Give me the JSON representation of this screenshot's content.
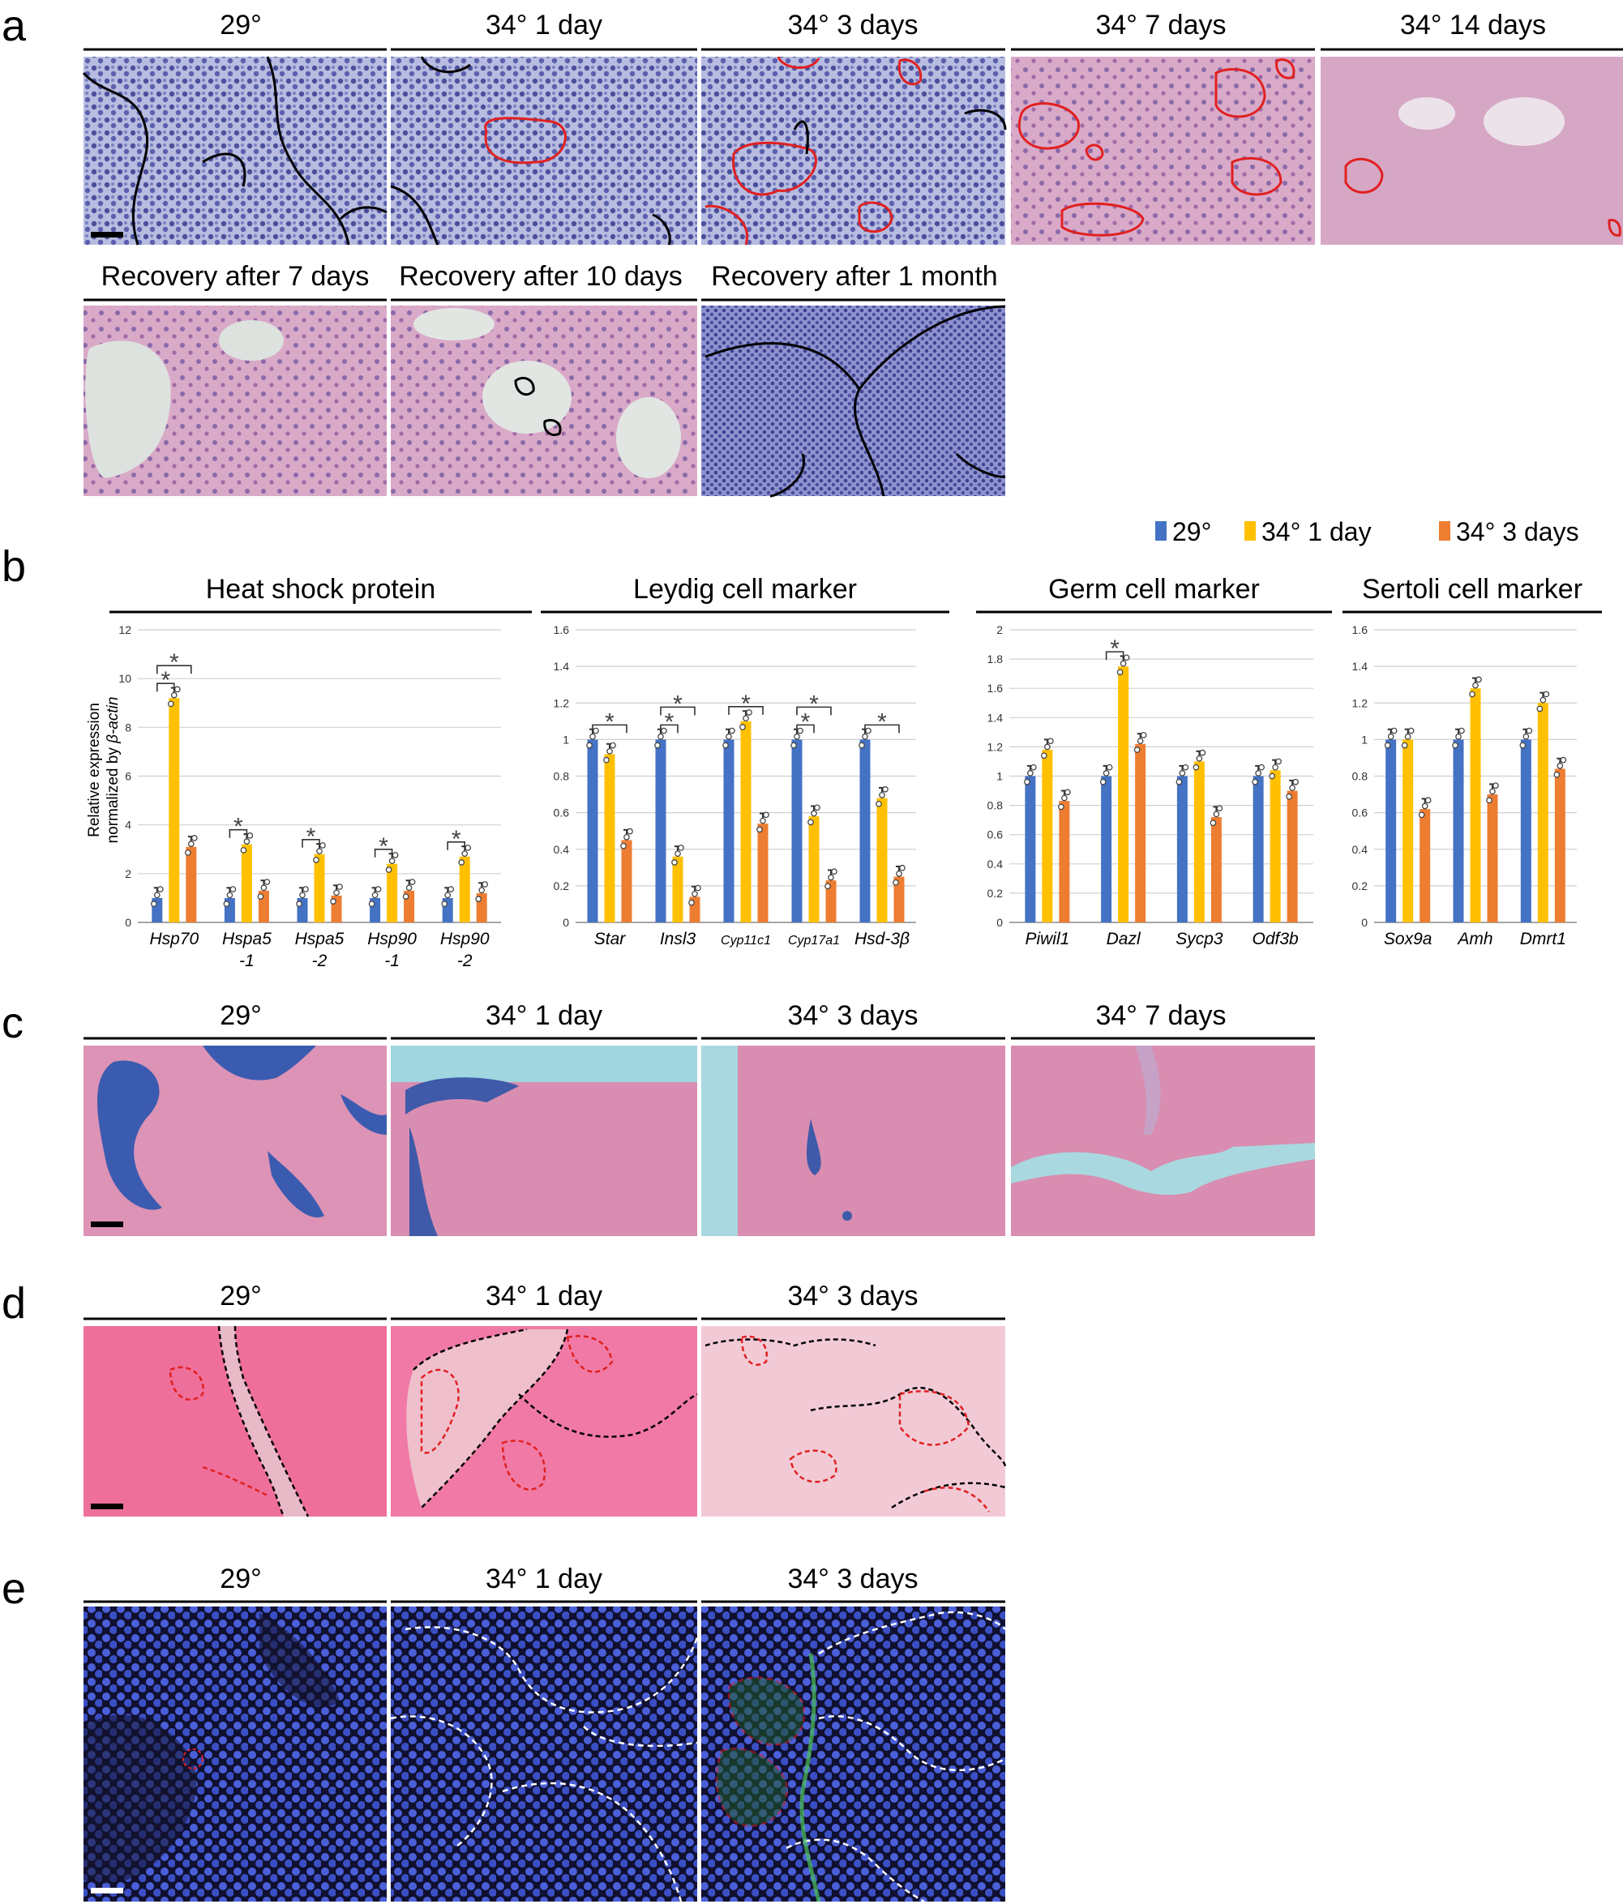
{
  "panel_labels": [
    "a",
    "b",
    "c",
    "d",
    "e"
  ],
  "panel_a": {
    "row1_titles": [
      "29°",
      "34° 1 day",
      "34° 3 days",
      "34° 7 days",
      "34° 14 days"
    ],
    "row2_titles": [
      "Recovery after 7 days",
      "Recovery after 10 days",
      "Recovery after 1 month"
    ]
  },
  "panel_c": {
    "titles": [
      "29°",
      "34° 1 day",
      "34° 3 days",
      "34° 7 days"
    ]
  },
  "panel_d": {
    "titles": [
      "29°",
      "34° 1 day",
      "34° 3 days"
    ]
  },
  "panel_e": {
    "titles": [
      "29°",
      "34° 1 day",
      "34° 3 days"
    ]
  },
  "colors": {
    "c29": "#4472c4",
    "c1d": "#ffc000",
    "c3d": "#ed7d31"
  },
  "chart_data": {
    "type": "bar",
    "legend": [
      "29°",
      "34° 1 day",
      "34° 3 days"
    ],
    "legend_position": "top-right",
    "ylabel_line1": "Relative expression",
    "ylabel_line2_prefix": "normalized by ",
    "ylabel_line2_italic": "β-actin",
    "groups": [
      {
        "title": "Heat shock protein",
        "ylim": [
          0,
          12
        ],
        "yticks": [
          "0",
          "2",
          "4",
          "6",
          "8",
          "10",
          "12"
        ],
        "categories": [
          [
            "Hsp70"
          ],
          [
            "Hspa5",
            "-1"
          ],
          [
            "Hspa5",
            "-2"
          ],
          [
            "Hsp90",
            "-1"
          ],
          [
            "Hsp90",
            "-2"
          ]
        ],
        "series": [
          {
            "name": "29°",
            "values": [
              1.0,
              1.0,
              1.0,
              1.0,
              1.0
            ]
          },
          {
            "name": "34° 1 day",
            "values": [
              9.2,
              3.2,
              2.8,
              2.4,
              2.7
            ]
          },
          {
            "name": "34° 3 days",
            "values": [
              3.1,
              1.3,
              1.1,
              1.3,
              1.2
            ]
          }
        ],
        "significance": [
          {
            "category": 0,
            "compare": 1,
            "label": "*"
          },
          {
            "category": 0,
            "compare": 2,
            "label": "*"
          },
          {
            "category": 1,
            "compare": 1,
            "label": "*"
          },
          {
            "category": 2,
            "compare": 1,
            "label": "*"
          },
          {
            "category": 3,
            "compare": 1,
            "label": "*"
          },
          {
            "category": 4,
            "compare": 1,
            "label": "*"
          }
        ]
      },
      {
        "title": "Leydig cell marker",
        "ylim": [
          0,
          1.6
        ],
        "yticks": [
          "0",
          "0.2",
          "0.4",
          "0.6",
          "0.8",
          "1",
          "1.2",
          "1.4",
          "1.6"
        ],
        "categories": [
          [
            "Star"
          ],
          [
            "Insl3"
          ],
          [
            "Cyp11c1"
          ],
          [
            "Cyp17a1"
          ],
          [
            "Hsd-3β"
          ]
        ],
        "series": [
          {
            "name": "29°",
            "values": [
              1.0,
              1.0,
              1.0,
              1.0,
              1.0
            ]
          },
          {
            "name": "34° 1 day",
            "values": [
              0.92,
              0.36,
              1.1,
              0.58,
              0.68
            ]
          },
          {
            "name": "34° 3 days",
            "values": [
              0.45,
              0.14,
              0.54,
              0.23,
              0.25
            ]
          }
        ],
        "significance": [
          {
            "category": 0,
            "compare": 2,
            "label": "*"
          },
          {
            "category": 1,
            "compare": 1,
            "label": "*"
          },
          {
            "category": 1,
            "compare": 2,
            "label": "*"
          },
          {
            "category": 2,
            "compare": 2,
            "label": "*"
          },
          {
            "category": 3,
            "compare": 1,
            "label": "*"
          },
          {
            "category": 3,
            "compare": 2,
            "label": "*"
          },
          {
            "category": 4,
            "compare": 2,
            "label": "*"
          }
        ]
      },
      {
        "title": "Germ cell marker",
        "ylim": [
          0,
          2
        ],
        "yticks": [
          "0",
          "0.2",
          "0.4",
          "0.6",
          "0.8",
          "1",
          "1.2",
          "1.4",
          "1.6",
          "1.8",
          "2"
        ],
        "categories": [
          [
            "Piwil1"
          ],
          [
            "Dazl"
          ],
          [
            "Sycp3"
          ],
          [
            "Odf3b"
          ]
        ],
        "series": [
          {
            "name": "29°",
            "values": [
              1.0,
              1.0,
              1.0,
              1.0
            ]
          },
          {
            "name": "34° 1 day",
            "values": [
              1.18,
              1.75,
              1.1,
              1.04
            ]
          },
          {
            "name": "34° 3 days",
            "values": [
              0.83,
              1.22,
              0.72,
              0.9
            ]
          }
        ],
        "significance": [
          {
            "category": 1,
            "compare": 1,
            "label": "*"
          }
        ]
      },
      {
        "title": "Sertoli cell marker",
        "ylim": [
          0,
          1.6
        ],
        "yticks": [
          "0",
          "0.2",
          "0.4",
          "0.6",
          "0.8",
          "1",
          "1.2",
          "1.4",
          "1.6"
        ],
        "categories": [
          [
            "Sox9a"
          ],
          [
            "Amh"
          ],
          [
            "Dmrt1"
          ]
        ],
        "series": [
          {
            "name": "29°",
            "values": [
              1.0,
              1.0,
              1.0
            ]
          },
          {
            "name": "34° 1 day",
            "values": [
              1.0,
              1.28,
              1.2
            ]
          },
          {
            "name": "34° 3 days",
            "values": [
              0.62,
              0.7,
              0.84
            ]
          }
        ],
        "significance": []
      }
    ]
  }
}
